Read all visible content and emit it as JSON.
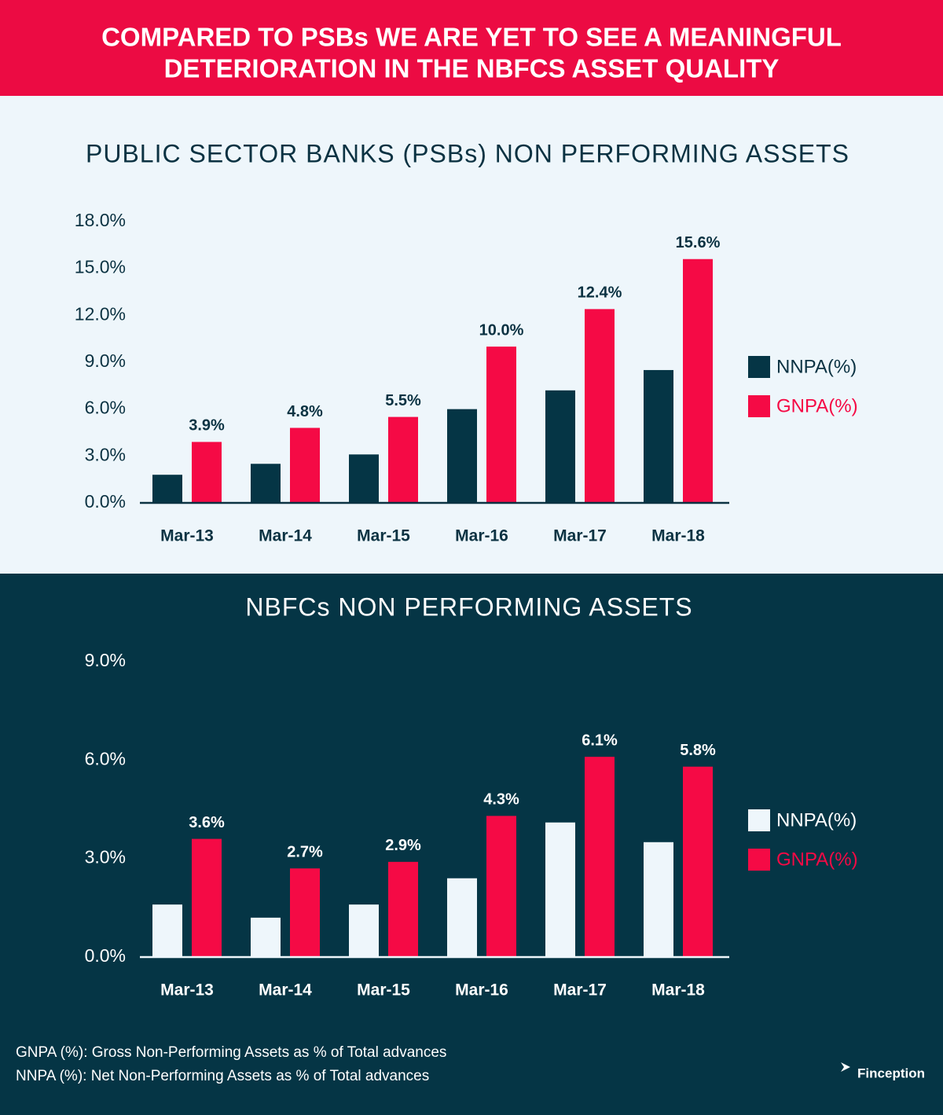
{
  "header": {
    "title": [
      "COMPARED TO PSBs WE ARE YET TO SEE A MEANINGFUL",
      "DETERIORATION IN THE NBFCS ASSET QUALITY"
    ]
  },
  "chart_data": [
    {
      "type": "bar",
      "title": "PUBLIC SECTOR BANKS (PSBs) NON PERFORMING ASSETS",
      "categories": [
        "Mar-13",
        "Mar-14",
        "Mar-15",
        "Mar-16",
        "Mar-17",
        "Mar-18"
      ],
      "series": [
        {
          "name": "NNPA(%)",
          "color": "#053545",
          "values": [
            1.8,
            2.5,
            3.1,
            6.0,
            7.2,
            8.5
          ]
        },
        {
          "name": "GNPA(%)",
          "color": "#f50a45",
          "values": [
            3.9,
            4.8,
            5.5,
            10.0,
            12.4,
            15.6
          ],
          "value_labels": [
            "3.9%",
            "4.8%",
            "5.5%",
            "10.0%",
            "12.4%",
            "15.6%"
          ]
        }
      ],
      "ylim": [
        0,
        18
      ],
      "yticks": [
        {
          "value": 0,
          "label": "0.0%"
        },
        {
          "value": 3,
          "label": "3.0%"
        },
        {
          "value": 6,
          "label": "6.0%"
        },
        {
          "value": 9,
          "label": "9.0%"
        },
        {
          "value": 12,
          "label": "12.0%"
        },
        {
          "value": 15,
          "label": "15.0%"
        },
        {
          "value": 18,
          "label": "18.0%"
        }
      ],
      "grid": false,
      "legend": "right"
    },
    {
      "type": "bar",
      "title": "NBFCs NON PERFORMING ASSETS",
      "categories": [
        "Mar-13",
        "Mar-14",
        "Mar-15",
        "Mar-16",
        "Mar-17",
        "Mar-18"
      ],
      "series": [
        {
          "name": "NNPA(%)",
          "color": "#eef6fb",
          "values": [
            1.6,
            1.2,
            1.6,
            2.4,
            4.1,
            3.5
          ]
        },
        {
          "name": "GNPA(%)",
          "color": "#f50a45",
          "values": [
            3.6,
            2.7,
            2.9,
            4.3,
            6.1,
            5.8
          ],
          "value_labels": [
            "3.6%",
            "2.7%",
            "2.9%",
            "4.3%",
            "6.1%",
            "5.8%"
          ]
        }
      ],
      "ylim": [
        0,
        9
      ],
      "yticks": [
        {
          "value": 0,
          "label": "0.0%"
        },
        {
          "value": 3,
          "label": "3.0%"
        },
        {
          "value": 6,
          "label": "6.0%"
        },
        {
          "value": 9,
          "label": "9.0%"
        }
      ],
      "grid": false,
      "legend": "right"
    }
  ],
  "footnotes": [
    "GNPA (%): Gross Non-Performing Assets as % of Total advances",
    "NNPA (%): Net Non-Performing Assets as % of Total advances"
  ],
  "brand": "Finception"
}
